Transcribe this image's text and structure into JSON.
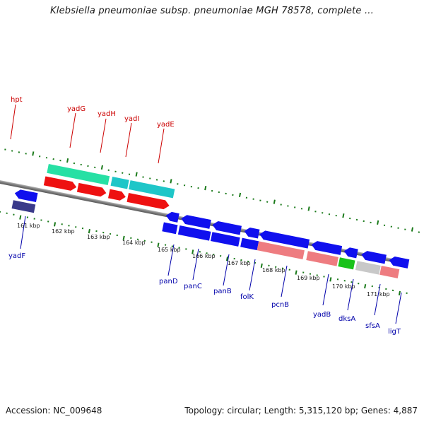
{
  "title": "Klebsiella pneumoniae subsp. pneumoniae MGH 78578, complete ...",
  "footer": {
    "accession": "Accession: NC_009648",
    "summary": "Topology: circular; Length: 5,315,120 bp; Genes: 4,887"
  },
  "colors": {
    "forward_label": "#cc0000",
    "reverse_label": "#0000aa",
    "tick": "#1a7a1a",
    "backbone": "#808080"
  },
  "scale": {
    "unit": "kbp",
    "ticks": [
      "161 kbp",
      "162 kbp",
      "163 kbp",
      "164 kbp",
      "165 kbp",
      "166 kbp",
      "167 kbp",
      "168 kbp",
      "169 kbp",
      "170 kbp",
      "171 kbp"
    ]
  },
  "forward_genes": [
    "hpt",
    "yadG",
    "yadH",
    "yadI",
    "yadE"
  ],
  "reverse_genes": [
    "yadF",
    "panD",
    "panC",
    "panB",
    "folK",
    "pcnB",
    "yadB",
    "dksA",
    "sfsA",
    "ligT"
  ]
}
